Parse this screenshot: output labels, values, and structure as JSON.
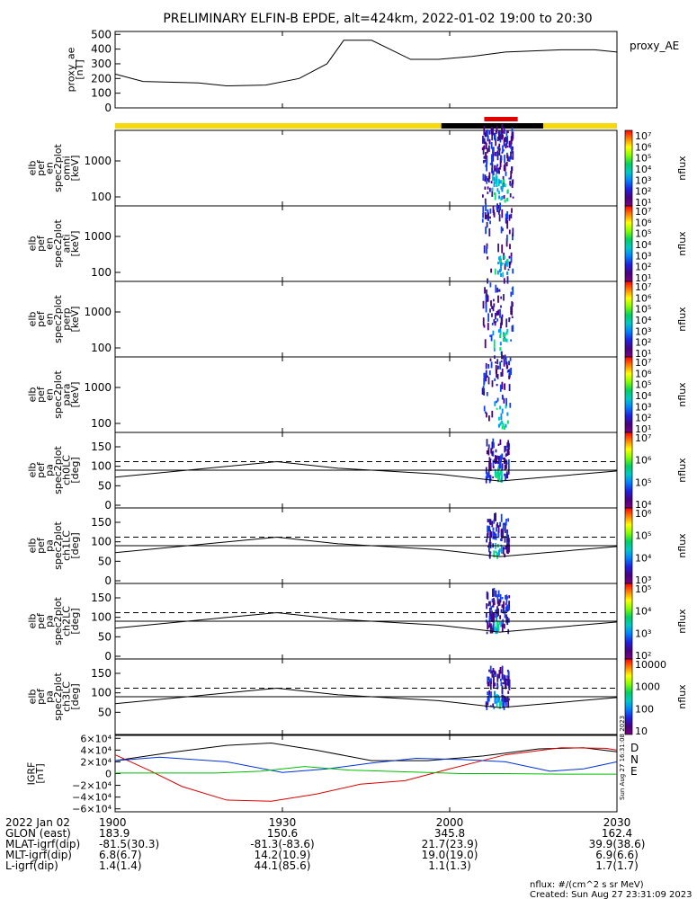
{
  "title": "PRELIMINARY ELFIN-B EPDE, alt=424km, 2022-01-02 19:00 to 20:30",
  "chart_data": {
    "type": "line",
    "time_range": [
      "19:00",
      "20:30"
    ],
    "x_ticks": [
      "1900",
      "1930",
      "2000",
      "2030"
    ],
    "ae": {
      "ylabel": "proxy_ae\n[nT]",
      "legend": "proxy_AE",
      "y_ticks": [
        "500",
        "400",
        "300",
        "200",
        "100",
        "0"
      ],
      "ylim": [
        0,
        520
      ],
      "series": [
        {
          "x": 0,
          "y": 230
        },
        {
          "x": 5,
          "y": 180
        },
        {
          "x": 15,
          "y": 170
        },
        {
          "x": 20,
          "y": 150
        },
        {
          "x": 27,
          "y": 155
        },
        {
          "x": 33,
          "y": 200
        },
        {
          "x": 38,
          "y": 300
        },
        {
          "x": 41,
          "y": 460
        },
        {
          "x": 46,
          "y": 460
        },
        {
          "x": 53,
          "y": 330
        },
        {
          "x": 58,
          "y": 330
        },
        {
          "x": 64,
          "y": 350
        },
        {
          "x": 70,
          "y": 380
        },
        {
          "x": 80,
          "y": 395
        },
        {
          "x": 86,
          "y": 395
        },
        {
          "x": 90,
          "y": 380
        }
      ]
    },
    "status_bar": {
      "colors": [
        "#f5d90a",
        "#000000",
        "#f5d90a"
      ],
      "segments_minutes": [
        [
          0,
          58.5
        ],
        [
          58.5,
          76.8
        ],
        [
          76.8,
          90
        ]
      ]
    },
    "science_marker": {
      "start_min": 66.2,
      "end_min": 72.2,
      "color": "#e00000"
    },
    "spectrograms": [
      {
        "ylabel": "elb\npef\nen\nspec2plot\nomni\n[keV]",
        "y_ticks": [
          "1000",
          "100"
        ]
      },
      {
        "ylabel": "elb\npef\nen\nspec2plot\nanti\n[keV]",
        "y_ticks": [
          "1000",
          "100"
        ]
      },
      {
        "ylabel": "elb\npef\nen\nspec2plot\nperp\n[keV]",
        "y_ticks": [
          "1000",
          "100"
        ]
      },
      {
        "ylabel": "elb\npef\nen\nspec2plot\npara\n[keV]",
        "y_ticks": [
          "1000",
          "100"
        ]
      }
    ],
    "pitch_panels": [
      {
        "ylabel": "elb\npef\npa\nspec2plot\nch0LC\n[deg]",
        "y_ticks": [
          "150",
          "100",
          "50",
          "0"
        ]
      },
      {
        "ylabel": "elb\npef\npa\nspec2plot\nch1LC\n[deg]",
        "y_ticks": [
          "150",
          "100",
          "50",
          "0"
        ]
      },
      {
        "ylabel": "elb\npef\npa\nspec2plot\nch2LC\n[deg]",
        "y_ticks": [
          "150",
          "100",
          "50",
          "0"
        ]
      },
      {
        "ylabel": "elb\npef\npa\nspec2plot\nch3LC\n[deg]",
        "y_ticks": [
          "150",
          "100",
          "50"
        ]
      }
    ],
    "colorbars": [
      {
        "unit": "nflux",
        "ticks": [
          "10⁷",
          "10⁶",
          "10⁵",
          "10⁴",
          "10³",
          "10²",
          "10¹"
        ]
      },
      {
        "unit": "nflux",
        "ticks": [
          "10⁷",
          "10⁶",
          "10⁵",
          "10⁴",
          "10³",
          "10²",
          "10¹"
        ]
      },
      {
        "unit": "nflux",
        "ticks": [
          "10⁷",
          "10⁶",
          "10⁵",
          "10⁴",
          "10³",
          "10²",
          "10¹"
        ]
      },
      {
        "unit": "nflux",
        "ticks": [
          "10⁷",
          "10⁶",
          "10⁵",
          "10⁴",
          "10³",
          "10²",
          "10¹"
        ]
      },
      {
        "unit": "nflux",
        "ticks": [
          "10⁷",
          "10⁶",
          "10⁵",
          "10⁴"
        ]
      },
      {
        "unit": "nflux",
        "ticks": [
          "10⁶",
          "10⁵",
          "10⁴",
          "10³"
        ]
      },
      {
        "unit": "nflux",
        "ticks": [
          "10⁵",
          "10⁴",
          "10³",
          "10²"
        ]
      },
      {
        "unit": "nflux",
        "ticks": [
          "10000",
          "1000",
          "100",
          "10"
        ]
      }
    ],
    "igrf": {
      "ylabel": "IGRF\n[nT]",
      "y_ticks": [
        "6×10⁴",
        "4×10⁴",
        "2×10⁴",
        "0",
        "−2×10⁴",
        "−4×10⁴",
        "−6×10⁴"
      ],
      "ylim": [
        -65000,
        65000
      ],
      "legend": [
        "D",
        "N",
        "E"
      ],
      "colors": {
        "D": "#e00000",
        "N": "#0030e0",
        "E": "#00c000",
        "total": "#000000"
      },
      "series": {
        "total": [
          [
            0,
            22000
          ],
          [
            10,
            36000
          ],
          [
            20,
            48000
          ],
          [
            28,
            52000
          ],
          [
            36,
            40000
          ],
          [
            46,
            22000
          ],
          [
            56,
            22000
          ],
          [
            66,
            30000
          ],
          [
            76,
            42000
          ],
          [
            84,
            44000
          ],
          [
            90,
            37000
          ]
        ],
        "D": [
          [
            0,
            32000
          ],
          [
            6,
            6000
          ],
          [
            12,
            -22000
          ],
          [
            20,
            -45000
          ],
          [
            28,
            -47000
          ],
          [
            36,
            -35000
          ],
          [
            44,
            -18000
          ],
          [
            52,
            -12000
          ],
          [
            60,
            8000
          ],
          [
            70,
            32000
          ],
          [
            80,
            44000
          ],
          [
            88,
            43000
          ],
          [
            90,
            40000
          ]
        ],
        "N": [
          [
            0,
            22000
          ],
          [
            8,
            28000
          ],
          [
            20,
            20000
          ],
          [
            30,
            2000
          ],
          [
            38,
            8000
          ],
          [
            46,
            18000
          ],
          [
            54,
            26000
          ],
          [
            62,
            24000
          ],
          [
            70,
            20000
          ],
          [
            78,
            4000
          ],
          [
            84,
            8000
          ],
          [
            90,
            20000
          ]
        ],
        "E": [
          [
            0,
            1000
          ],
          [
            18,
            1000
          ],
          [
            26,
            4000
          ],
          [
            34,
            12000
          ],
          [
            42,
            6000
          ],
          [
            56,
            2000
          ],
          [
            62,
            0
          ],
          [
            70,
            0
          ],
          [
            80,
            -1000
          ],
          [
            90,
            -1000
          ]
        ]
      }
    }
  },
  "footer": {
    "rows": [
      {
        "label": "2022 Jan 02",
        "values": [
          "1900",
          "1930",
          "2000",
          "2030"
        ]
      },
      {
        "label": "GLON (east)",
        "values": [
          "183.9",
          "150.6",
          "345.8",
          "162.4"
        ]
      },
      {
        "label": "MLAT-igrf(dip)",
        "values": [
          "-81.5(30.3)",
          "-81.3(-83.6)",
          "21.7(23.9)",
          "39.9(38.6)"
        ]
      },
      {
        "label": "MLT-igrf(dip)",
        "values": [
          "6.8(6.7)",
          "14.2(10.9)",
          "19.0(19.0)",
          "6.9(6.6)"
        ]
      },
      {
        "label": "L-igrf(dip)",
        "values": [
          "1.4(1.4)",
          "44.1(85.6)",
          "1.1(1.3)",
          "1.7(1.7)"
        ]
      }
    ],
    "flux_units": "nflux: #/(cm^2 s sr MeV)",
    "created": "Created: Sun Aug 27 23:31:09 2023",
    "side_stamp": "Sun Aug 27 16:31:08 2023"
  }
}
